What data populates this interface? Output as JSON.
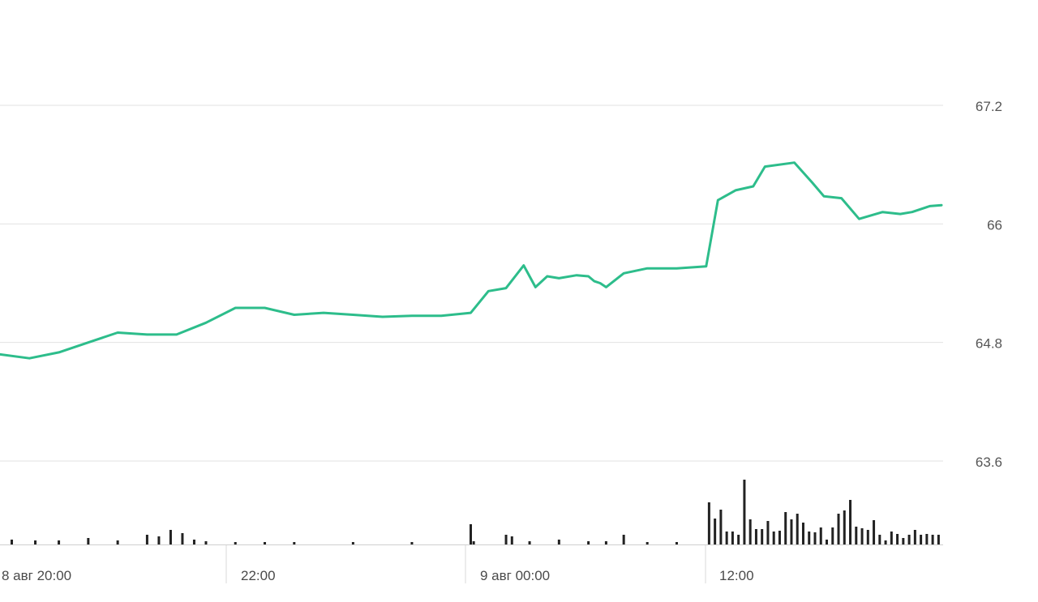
{
  "chart_data": {
    "type": "line",
    "title": "",
    "xlabel": "",
    "ylabel": "",
    "ylim": [
      63.6,
      67.2
    ],
    "y_ticks": [
      "67.2",
      "66",
      "64.8",
      "63.6"
    ],
    "x_ticks": [
      "8 авг 20:00",
      "22:00",
      "9 авг 00:00",
      "12:00"
    ],
    "grid": true,
    "colors": {
      "line": "#2dbd8b",
      "volume": "#222222",
      "grid": "#e2e2e2",
      "axis_text": "#555555"
    },
    "price_series": {
      "name": "",
      "x": [
        0,
        0.5,
        1.0,
        1.5,
        2.0,
        2.5,
        3.0,
        3.5,
        4.0,
        4.5,
        5.0,
        5.5,
        6.0,
        6.5,
        7.0,
        7.5,
        8.0,
        8.3,
        8.6,
        8.9,
        9.1,
        9.3,
        9.5,
        9.8,
        10.0,
        10.1,
        10.2,
        10.3,
        10.6,
        11.0,
        11.5,
        12.0,
        12.2,
        12.5,
        12.8,
        13.0,
        13.5,
        13.8,
        14.0,
        14.3,
        14.6,
        15.0,
        15.3,
        15.5,
        15.8,
        16.0
      ],
      "values": [
        64.68,
        64.64,
        64.7,
        64.8,
        64.9,
        64.88,
        64.88,
        65.0,
        65.15,
        65.15,
        65.08,
        65.1,
        65.08,
        65.06,
        65.07,
        65.07,
        65.1,
        65.32,
        65.35,
        65.58,
        65.36,
        65.47,
        65.45,
        65.48,
        65.47,
        65.42,
        65.4,
        65.36,
        65.5,
        65.55,
        65.55,
        65.57,
        66.24,
        66.34,
        66.38,
        66.58,
        66.62,
        66.42,
        66.28,
        66.26,
        66.05,
        66.12,
        66.1,
        66.12,
        66.18,
        66.19
      ]
    },
    "volume_series": {
      "name": "",
      "x": [
        0.2,
        0.6,
        1.0,
        1.5,
        2.0,
        2.5,
        2.7,
        2.9,
        3.1,
        3.3,
        3.5,
        4.0,
        4.5,
        5.0,
        6.0,
        7.0,
        8.0,
        8.05,
        8.6,
        8.7,
        9.0,
        9.5,
        10.0,
        10.3,
        10.6,
        11.0,
        11.5,
        12.05,
        12.15,
        12.25,
        12.35,
        12.45,
        12.55,
        12.65,
        12.75,
        12.85,
        12.95,
        13.05,
        13.15,
        13.25,
        13.35,
        13.45,
        13.55,
        13.65,
        13.75,
        13.85,
        13.95,
        14.05,
        14.15,
        14.25,
        14.35,
        14.45,
        14.55,
        14.65,
        14.75,
        14.85,
        14.95,
        15.05,
        15.15,
        15.25,
        15.35,
        15.45,
        15.55,
        15.65,
        15.75,
        15.85,
        15.95
      ],
      "values": [
        6,
        5,
        5,
        8,
        5,
        12,
        10,
        18,
        14,
        6,
        4,
        3,
        3,
        3,
        3,
        3,
        25,
        4,
        12,
        10,
        4,
        6,
        4,
        4,
        12,
        3,
        3,
        52,
        32,
        43,
        16,
        16,
        12,
        80,
        31,
        19,
        19,
        29,
        16,
        17,
        40,
        31,
        38,
        27,
        16,
        15,
        21,
        6,
        21,
        38,
        42,
        55,
        22,
        20,
        18,
        30,
        12,
        5,
        16,
        13,
        8,
        12,
        18,
        12,
        13,
        12,
        12
      ]
    }
  }
}
